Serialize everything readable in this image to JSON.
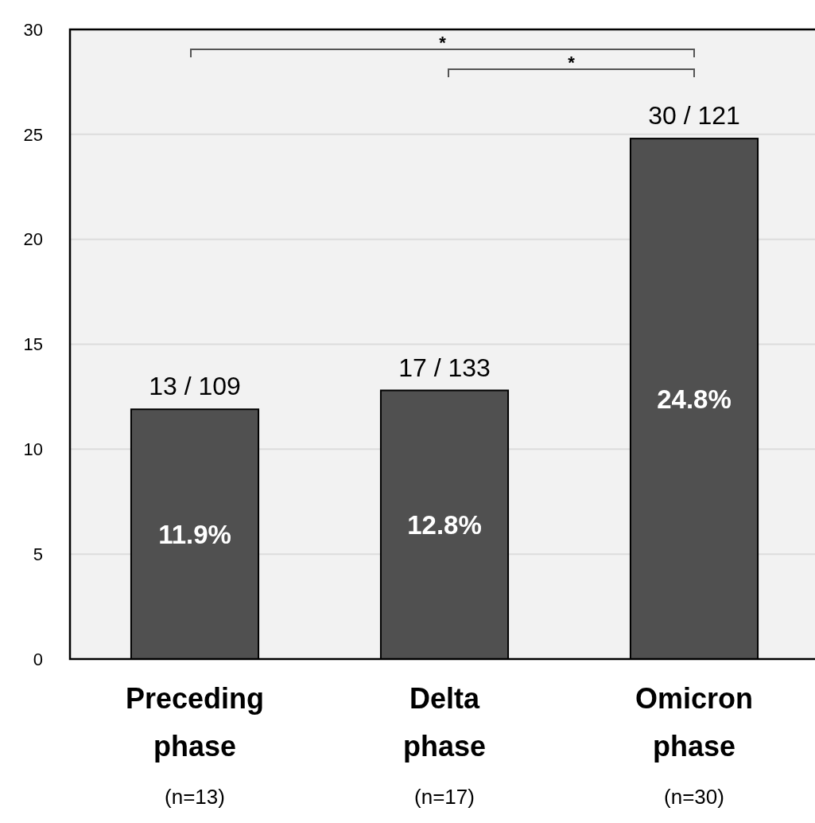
{
  "chart_data": {
    "type": "bar",
    "categories": [
      "Preceding phase",
      "Delta phase",
      "Omicron phase"
    ],
    "values": [
      11.9,
      12.8,
      24.8
    ],
    "color": "#505050",
    "value_labels": [
      "11.9%",
      "12.8%",
      "24.8%"
    ],
    "ylim": [
      0,
      30
    ],
    "yticks": [
      0,
      5,
      10,
      15,
      20,
      25,
      30
    ],
    "grid": "y",
    "annotations": [
      {
        "text": "13 / 109",
        "x": "Preceding phase",
        "y": 11.9
      },
      {
        "text": "17 / 133",
        "x": "Delta phase",
        "y": 12.8
      },
      {
        "text": "30 / 121",
        "x": "Omicron phase",
        "y": 24.8
      },
      "(n=13)",
      "(n=17)",
      "(n=30)",
      "*",
      "*"
    ]
  }
}
